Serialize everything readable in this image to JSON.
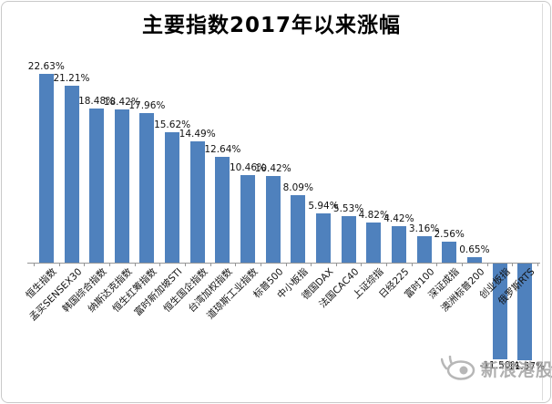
{
  "title": "主要指数2017年以来涨幅",
  "watermark": {
    "text": "新浪港股",
    "logo": "sina-eye-icon"
  },
  "chart_data": {
    "type": "bar",
    "title": "主要指数2017年以来涨幅",
    "xlabel": "",
    "ylabel": "",
    "categories": [
      "恒生指数",
      "孟买SENSEX30",
      "韩国综合指数",
      "纳斯达克指数",
      "恒生红筹指数",
      "富时新加坡STI",
      "恒生国企指数",
      "台湾加权指数",
      "道琼斯工业指数",
      "标普500",
      "中小板指",
      "德国DAX",
      "法国CAC40",
      "上证综指",
      "日经225",
      "富时100",
      "深证成指",
      "澳洲标普200",
      "创业板指",
      "俄罗斯RTS"
    ],
    "values": [
      22.63,
      21.21,
      18.48,
      18.42,
      17.96,
      15.62,
      14.49,
      12.64,
      10.46,
      10.42,
      8.09,
      5.94,
      5.53,
      4.82,
      4.42,
      3.16,
      2.56,
      0.65,
      -11.5,
      -11.57
    ],
    "labels": [
      "22.63%",
      "21.21%",
      "18.48%",
      "18.42%",
      "17.96%",
      "15.62%",
      "14.49%",
      "12.64%",
      "10.46%",
      "10.42%",
      "8.09%",
      "5.94%",
      "5.53%",
      "4.82%",
      "4.42%",
      "3.16%",
      "2.56%",
      "0.65%",
      "-11.50%",
      "-11.57%"
    ],
    "bar_color": "#4F81BD",
    "axis_color": "#969696",
    "label_color": "#111111",
    "grid": false,
    "legend": false,
    "data_labels": true,
    "ylim": [
      -13,
      25
    ]
  }
}
